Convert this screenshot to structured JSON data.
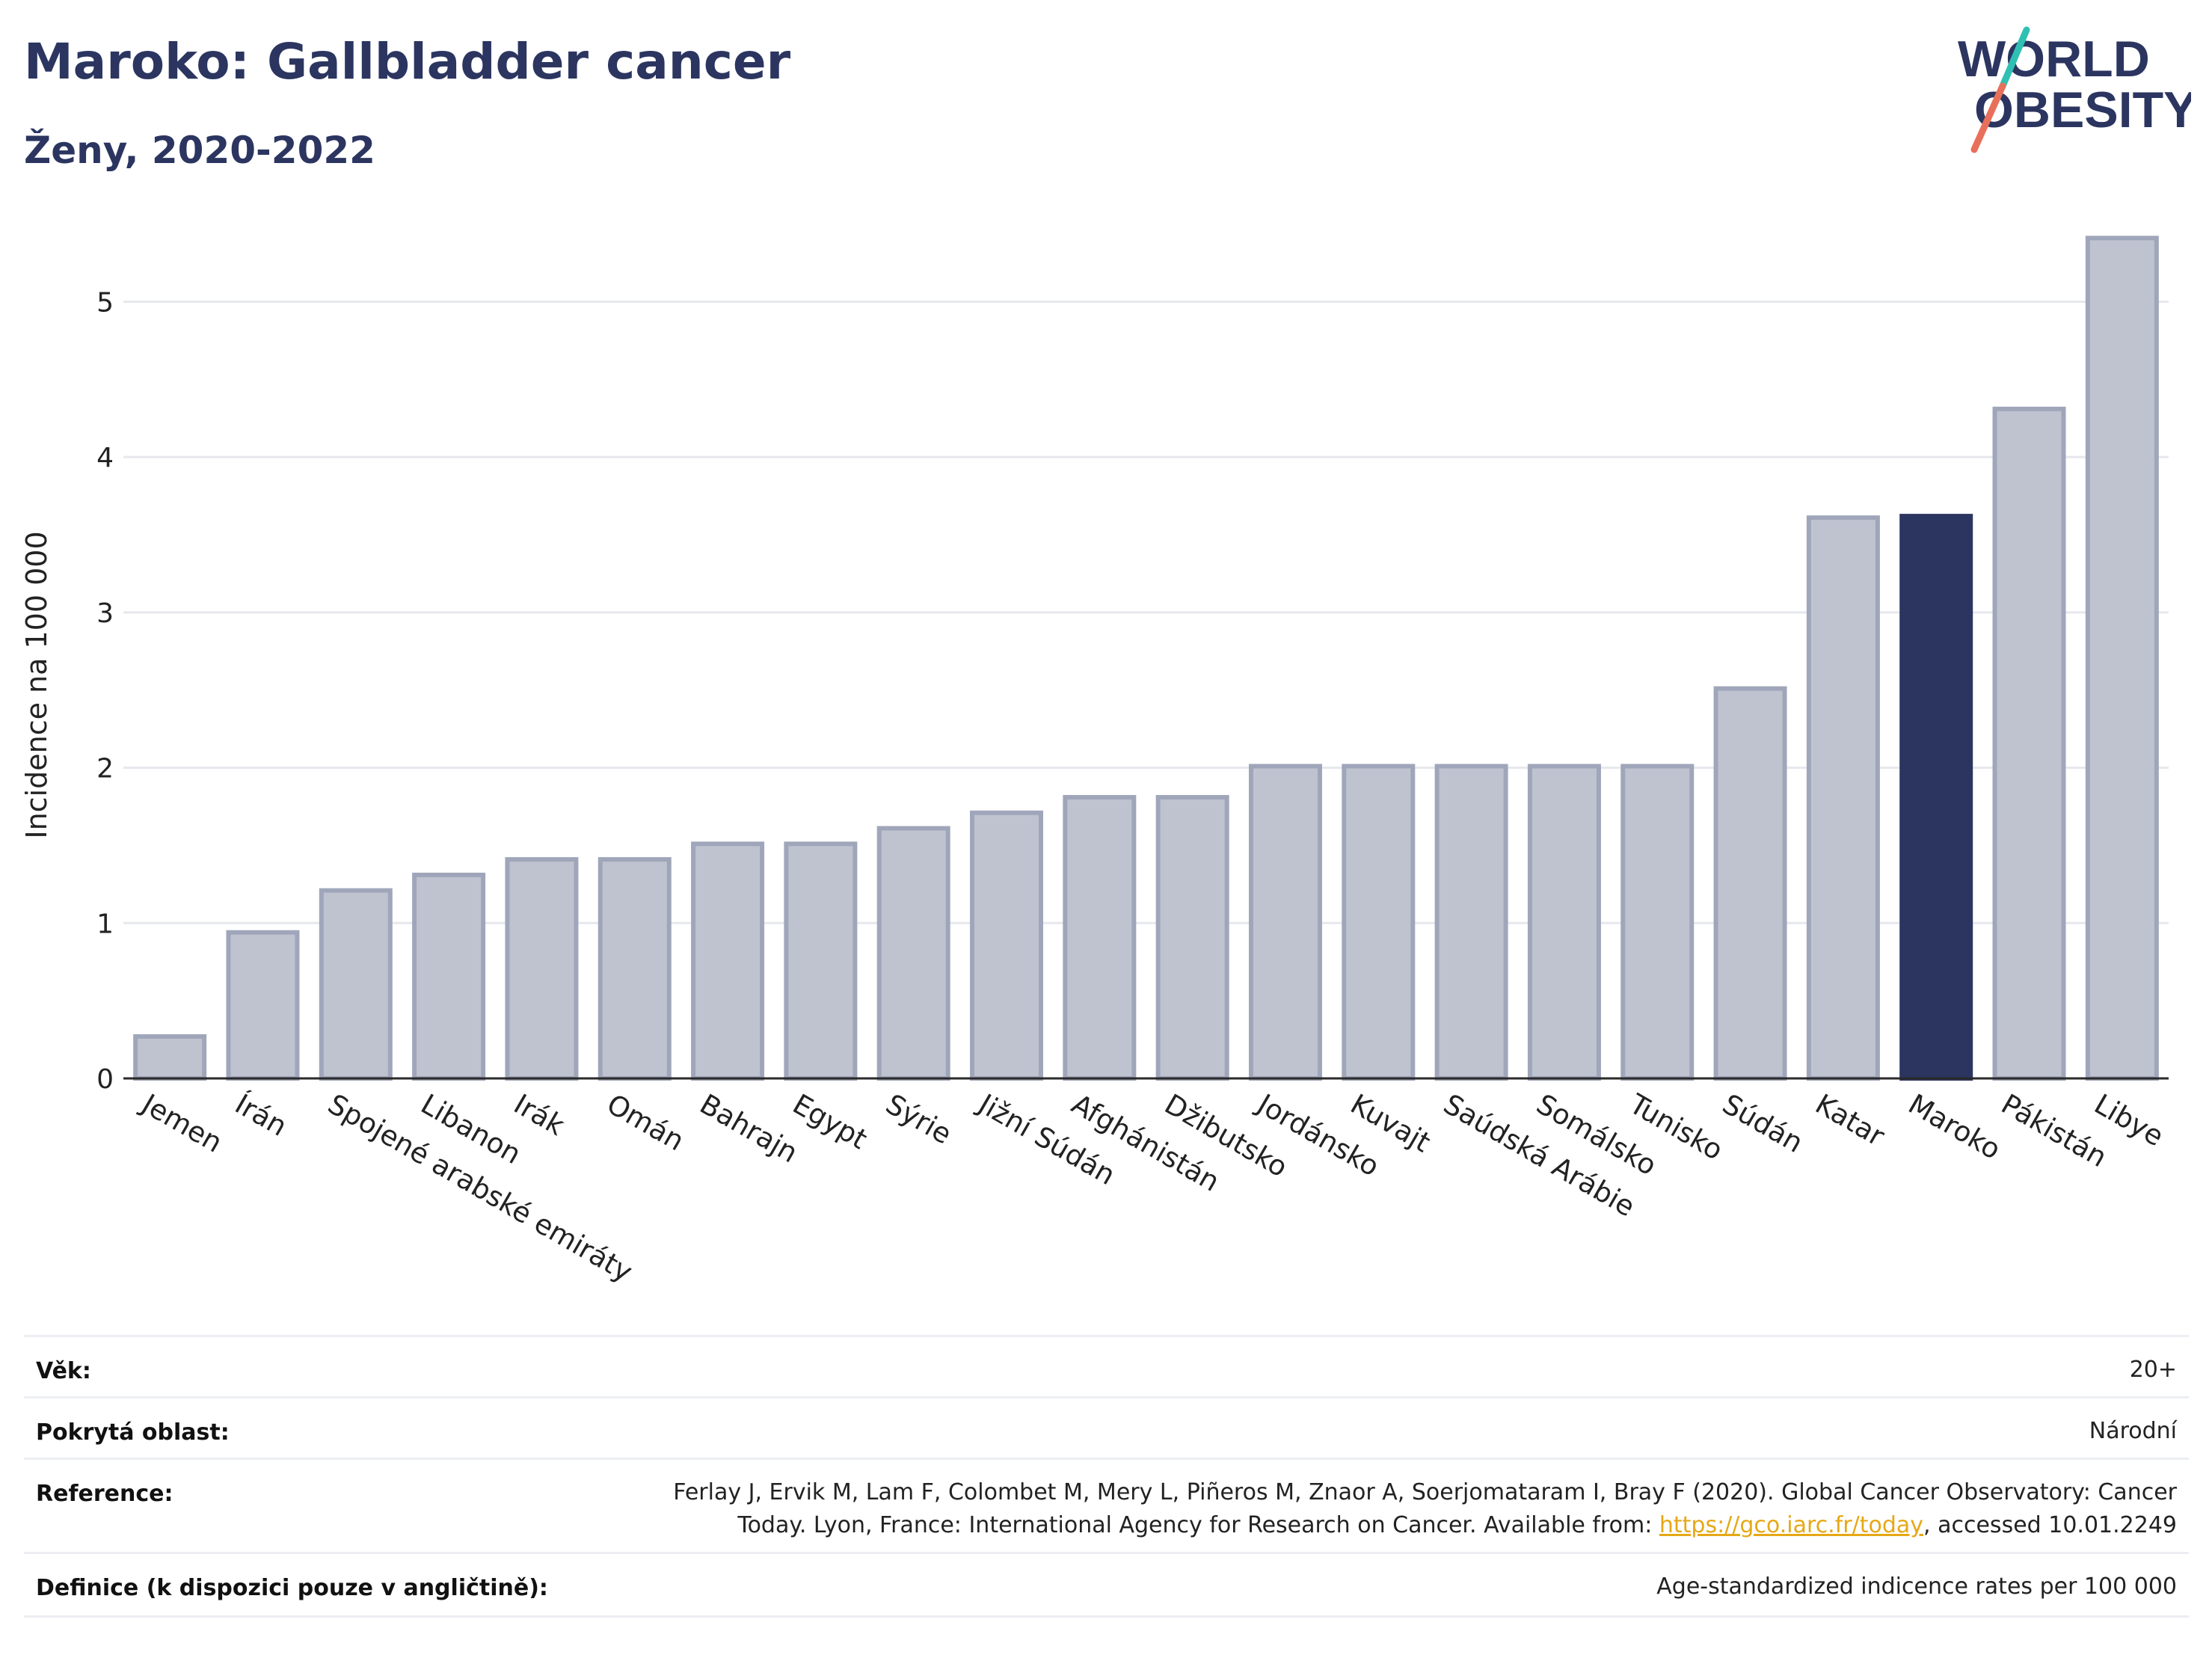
{
  "header": {
    "title": "Maroko: Gallbladder cancer",
    "subtitle": "Ženy, 2020-2022"
  },
  "logo": {
    "line1": "WORLD",
    "line2": "OBESITY"
  },
  "colors": {
    "bar": "#bfc3d0",
    "bar_stroke": "#a0a6ba",
    "highlight": "#2b3560",
    "grid": "#e6e8ee",
    "title": "#2b3560"
  },
  "chart_data": {
    "type": "bar",
    "title": "Maroko: Gallbladder cancer",
    "subtitle": "Ženy, 2020-2022",
    "xlabel": "",
    "ylabel": "Incidence na 100 000",
    "ylim": [
      0,
      5.45
    ],
    "yticks": [
      0,
      1,
      2,
      3,
      4,
      5
    ],
    "grid": true,
    "highlight": "Maroko",
    "categories": [
      "Jemen",
      "Írán",
      "Spojené arabské emiráty",
      "Libanon",
      "Irák",
      "Omán",
      "Bahrajn",
      "Egypt",
      "Sýrie",
      "Jižní Súdán",
      "Afghánistán",
      "Džibutsko",
      "Jordánsko",
      "Kuvajt",
      "Saúdská Arábie",
      "Somálsko",
      "Tunisko",
      "Súdán",
      "Katar",
      "Maroko",
      "Pákistán",
      "Libye"
    ],
    "values": [
      0.27,
      0.94,
      1.21,
      1.31,
      1.41,
      1.41,
      1.51,
      1.51,
      1.61,
      1.71,
      1.81,
      1.81,
      2.01,
      2.01,
      2.01,
      2.01,
      2.01,
      2.51,
      3.61,
      3.62,
      4.31,
      5.41
    ]
  },
  "meta": {
    "age_label": "Věk:",
    "age_value": "20+",
    "area_label": "Pokrytá oblast:",
    "area_value": "Národní",
    "ref_label": "Reference:",
    "ref_line1": "Ferlay J, Ervik M, Lam F, Colombet M, Mery L, Piñeros M, Znaor A, Soerjomataram I, Bray F (2020). Global Cancer Observatory: Cancer",
    "ref_line2_pre": "Today. Lyon, France: International Agency for Research on Cancer. Available from: ",
    "ref_link": "https://gco.iarc.fr/today",
    "ref_line2_post": ", accessed 10.01.2249",
    "def_label": "Definice (k dispozici pouze v angličtině):",
    "def_value": "Age-standardized indicence rates per 100 000"
  }
}
